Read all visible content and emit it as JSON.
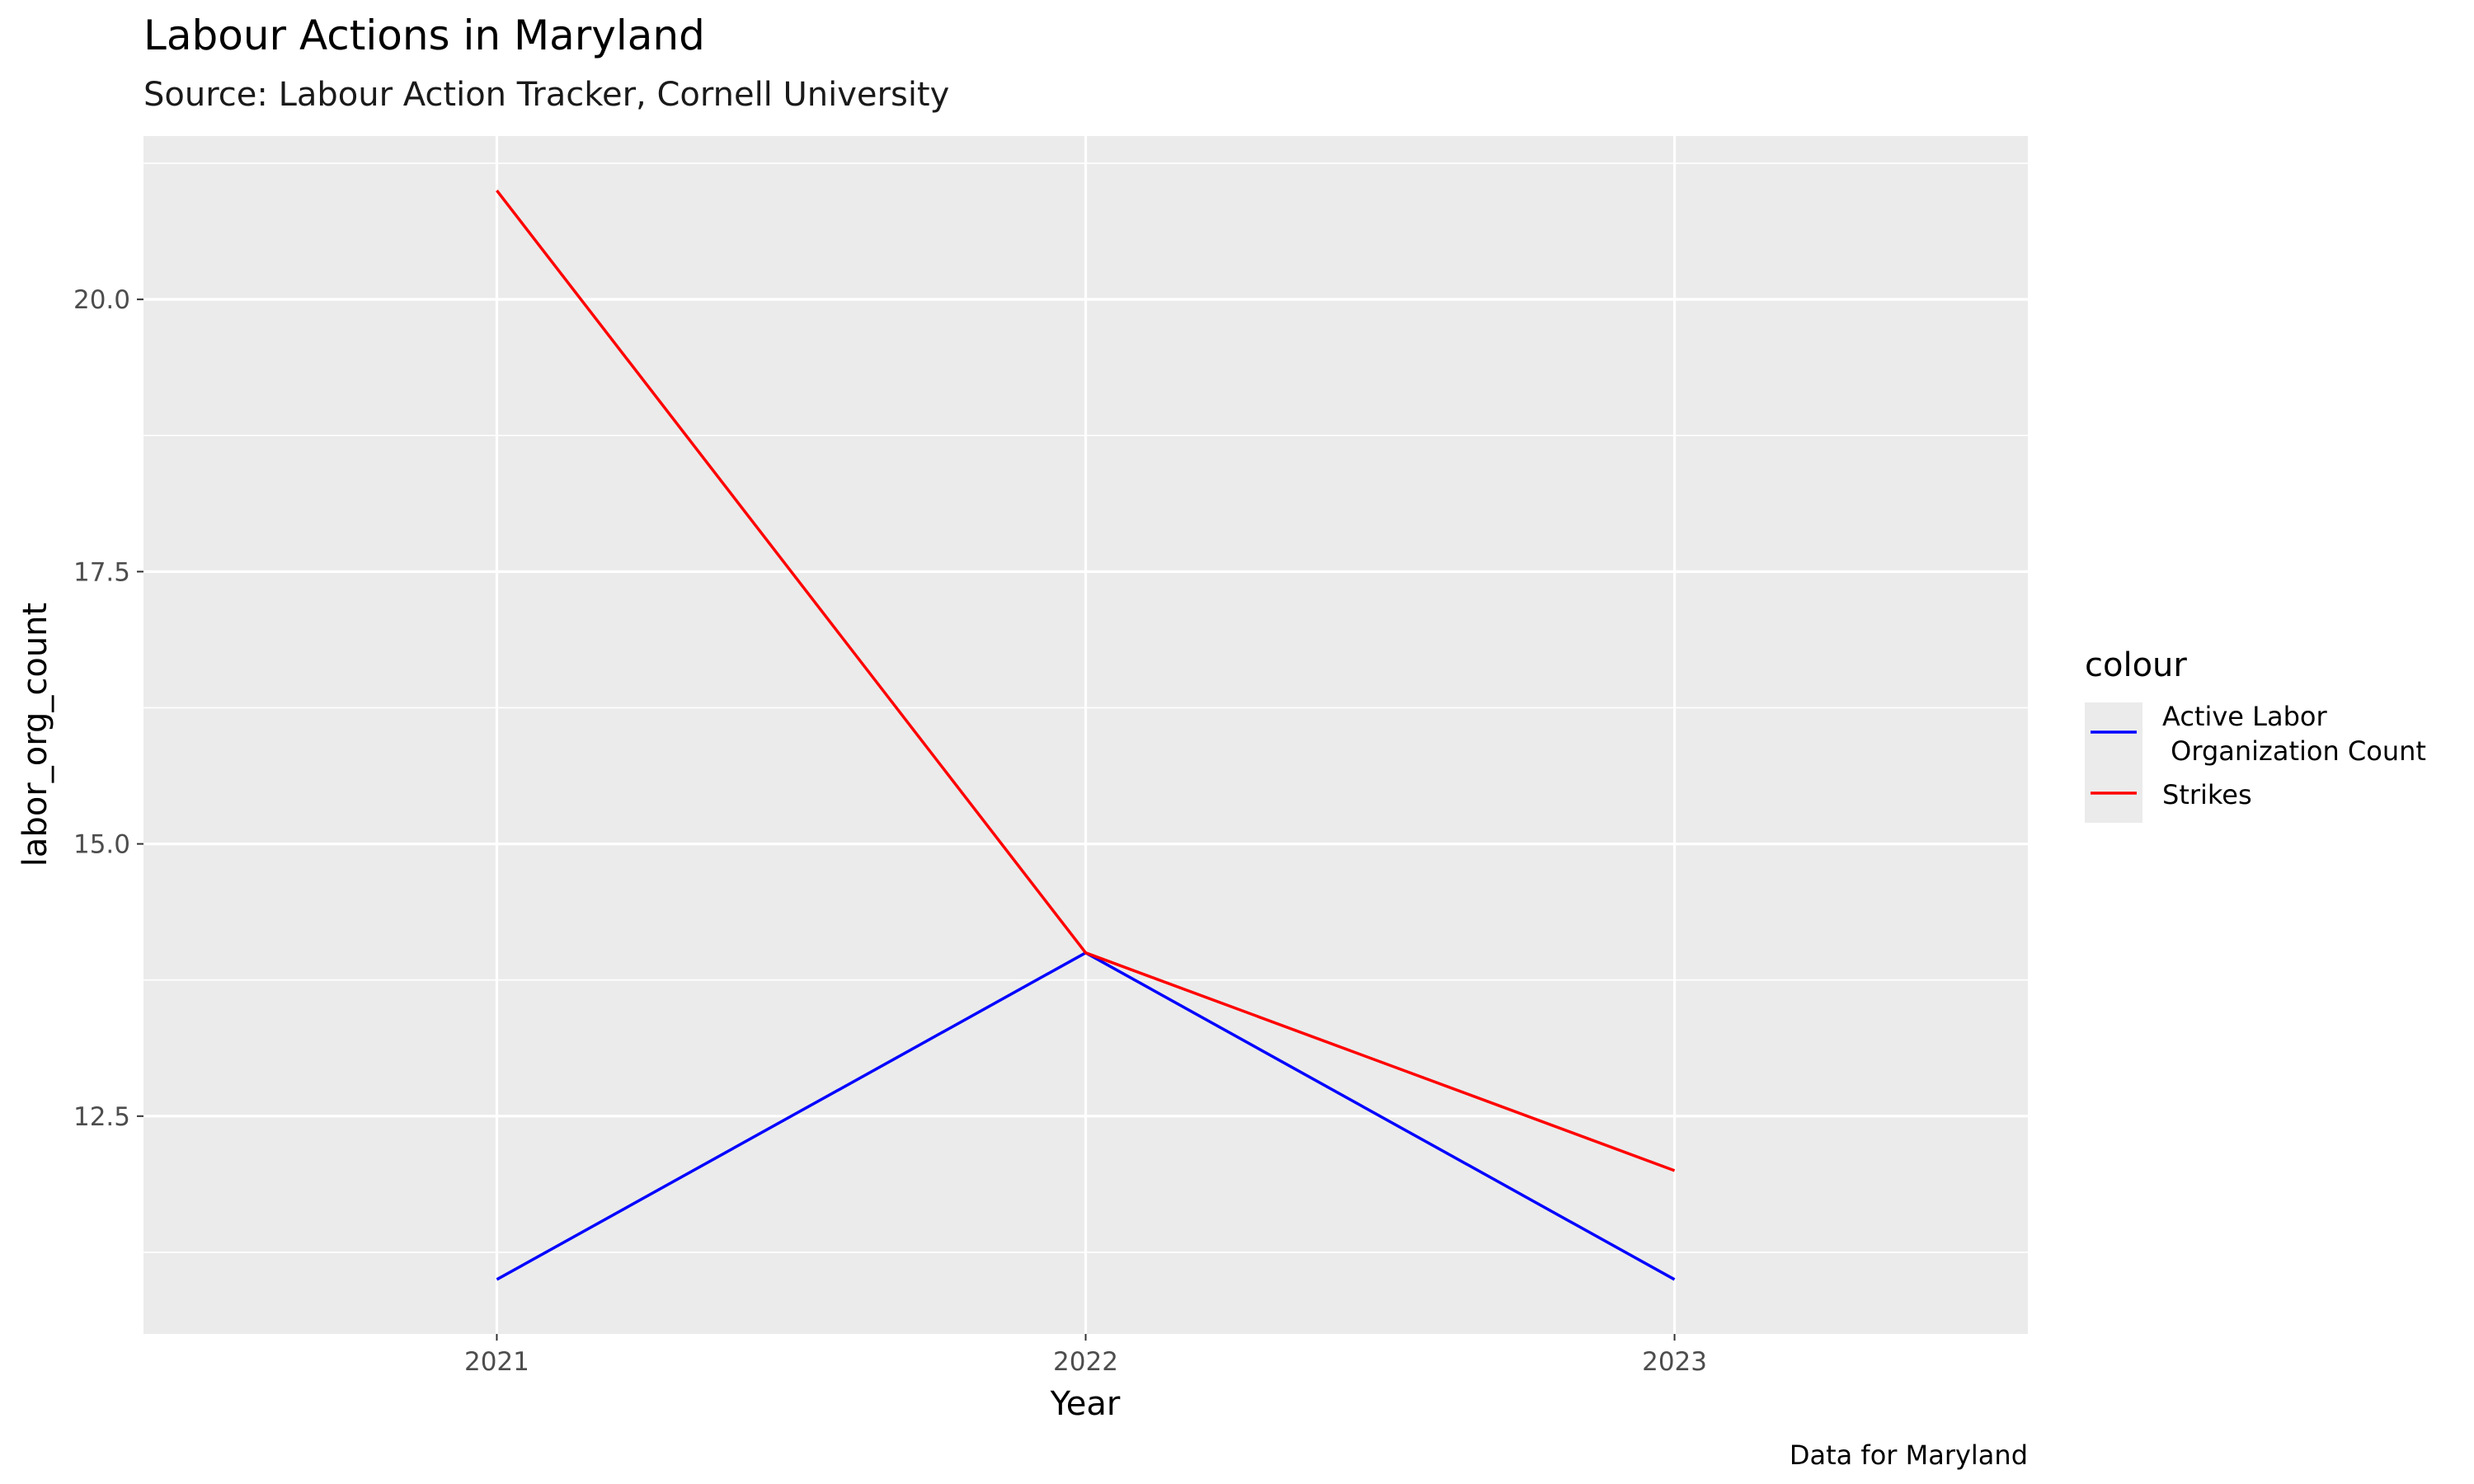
{
  "chart_data": {
    "type": "line",
    "title": "Labour Actions in Maryland",
    "subtitle": "Source: Labour Action Tracker, Cornell University",
    "caption": "Data for Maryland",
    "xlabel": "Year",
    "ylabel": "labor_org_count",
    "x": [
      "2021",
      "2022",
      "2023"
    ],
    "xlim": [
      2020.4,
      2023.6
    ],
    "ylim": [
      10.5,
      21.5
    ],
    "y_ticks": [
      "12.5",
      "15.0",
      "17.5",
      "20.0"
    ],
    "grid": true,
    "legend": {
      "title": "colour",
      "placement": "right",
      "entries": [
        {
          "line1": "Active Labor",
          "line2": " Organization Count",
          "color": "#0000ff"
        },
        {
          "line1": "Strikes",
          "line2": "",
          "color": "#ff0000"
        }
      ]
    },
    "series": [
      {
        "values": [
          11,
          14,
          11
        ],
        "color": "#0000ff"
      },
      {
        "values": [
          21,
          14,
          12
        ],
        "color": "#ff0000"
      }
    ],
    "panel_color": "#ebebeb",
    "grid_color": "#ffffff"
  }
}
